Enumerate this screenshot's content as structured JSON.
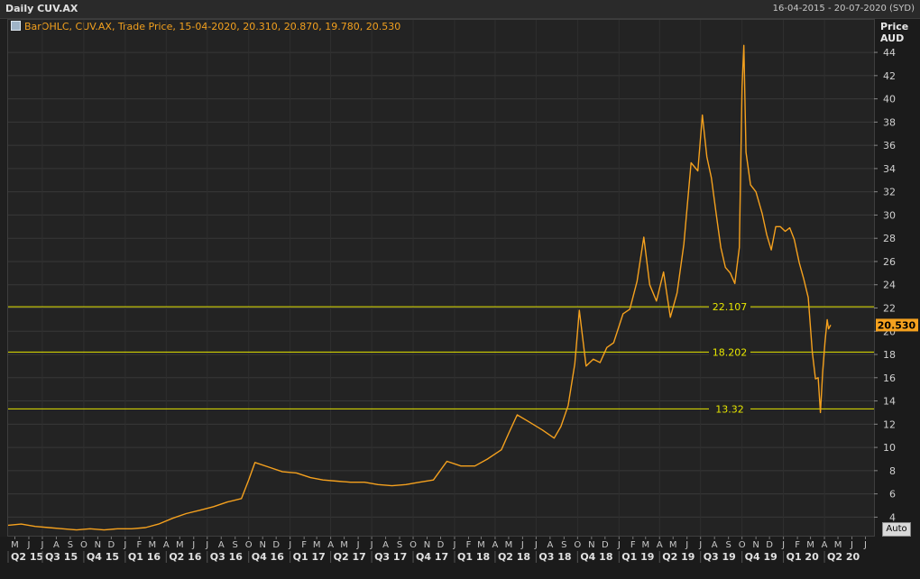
{
  "header": {
    "title": "Daily CUV.AX",
    "date_range": "16-04-2015 - 20-07-2020 (SYD)"
  },
  "legend": {
    "text": "BarOHLC, CUV.AX, Trade Price, 15-04-2020, 20.310, 20.870, 19.780, 20.530"
  },
  "auto_button": "Auto",
  "colors": {
    "price_line": "#f5a11e",
    "hline": "#e6e600",
    "last_badge": "#f5a11e",
    "background": "#232323",
    "grid": "#383838"
  },
  "chart_data": {
    "type": "line",
    "symbol": "CUV.AX",
    "ylabel": "Price",
    "yunit": "AUD",
    "ylim": [
      2.4,
      46.8
    ],
    "yticks": [
      4,
      6,
      8,
      10,
      12,
      14,
      16,
      18,
      20,
      22,
      24,
      26,
      28,
      30,
      32,
      34,
      36,
      38,
      40,
      42,
      44
    ],
    "grid": true,
    "x_range": [
      "2015-04-16",
      "2020-07-20"
    ],
    "last_value": 20.53,
    "last_value_label": "20.530",
    "horizontal_lines": [
      {
        "value": 22.107,
        "label": "22.107"
      },
      {
        "value": 18.202,
        "label": "18.202"
      },
      {
        "value": 13.32,
        "label": "13.32"
      }
    ],
    "month_labels": [
      {
        "date": "2015-05-01",
        "label": "M"
      },
      {
        "date": "2015-06-01",
        "label": "J"
      },
      {
        "date": "2015-07-01",
        "label": "J"
      },
      {
        "date": "2015-08-01",
        "label": "A"
      },
      {
        "date": "2015-09-01",
        "label": "S"
      },
      {
        "date": "2015-10-01",
        "label": "O"
      },
      {
        "date": "2015-11-01",
        "label": "N"
      },
      {
        "date": "2015-12-01",
        "label": "D"
      },
      {
        "date": "2016-01-01",
        "label": "J"
      },
      {
        "date": "2016-02-01",
        "label": "F"
      },
      {
        "date": "2016-03-01",
        "label": "M"
      },
      {
        "date": "2016-04-01",
        "label": "A"
      },
      {
        "date": "2016-05-01",
        "label": "M"
      },
      {
        "date": "2016-06-01",
        "label": "J"
      },
      {
        "date": "2016-07-01",
        "label": "J"
      },
      {
        "date": "2016-08-01",
        "label": "A"
      },
      {
        "date": "2016-09-01",
        "label": "S"
      },
      {
        "date": "2016-10-01",
        "label": "O"
      },
      {
        "date": "2016-11-01",
        "label": "N"
      },
      {
        "date": "2016-12-01",
        "label": "D"
      },
      {
        "date": "2017-01-01",
        "label": "J"
      },
      {
        "date": "2017-02-01",
        "label": "F"
      },
      {
        "date": "2017-03-01",
        "label": "M"
      },
      {
        "date": "2017-04-01",
        "label": "A"
      },
      {
        "date": "2017-05-01",
        "label": "M"
      },
      {
        "date": "2017-06-01",
        "label": "J"
      },
      {
        "date": "2017-07-01",
        "label": "J"
      },
      {
        "date": "2017-08-01",
        "label": "A"
      },
      {
        "date": "2017-09-01",
        "label": "S"
      },
      {
        "date": "2017-10-01",
        "label": "O"
      },
      {
        "date": "2017-11-01",
        "label": "N"
      },
      {
        "date": "2017-12-01",
        "label": "D"
      },
      {
        "date": "2018-01-01",
        "label": "J"
      },
      {
        "date": "2018-02-01",
        "label": "F"
      },
      {
        "date": "2018-03-01",
        "label": "M"
      },
      {
        "date": "2018-04-01",
        "label": "A"
      },
      {
        "date": "2018-05-01",
        "label": "M"
      },
      {
        "date": "2018-06-01",
        "label": "J"
      },
      {
        "date": "2018-07-01",
        "label": "J"
      },
      {
        "date": "2018-08-01",
        "label": "A"
      },
      {
        "date": "2018-09-01",
        "label": "S"
      },
      {
        "date": "2018-10-01",
        "label": "O"
      },
      {
        "date": "2018-11-01",
        "label": "N"
      },
      {
        "date": "2018-12-01",
        "label": "D"
      },
      {
        "date": "2019-01-01",
        "label": "J"
      },
      {
        "date": "2019-02-01",
        "label": "F"
      },
      {
        "date": "2019-03-01",
        "label": "M"
      },
      {
        "date": "2019-04-01",
        "label": "A"
      },
      {
        "date": "2019-05-01",
        "label": "M"
      },
      {
        "date": "2019-06-01",
        "label": "J"
      },
      {
        "date": "2019-07-01",
        "label": "J"
      },
      {
        "date": "2019-08-01",
        "label": "A"
      },
      {
        "date": "2019-09-01",
        "label": "S"
      },
      {
        "date": "2019-10-01",
        "label": "O"
      },
      {
        "date": "2019-11-01",
        "label": "N"
      },
      {
        "date": "2019-12-01",
        "label": "D"
      },
      {
        "date": "2020-01-01",
        "label": "J"
      },
      {
        "date": "2020-02-01",
        "label": "F"
      },
      {
        "date": "2020-03-01",
        "label": "M"
      },
      {
        "date": "2020-04-01",
        "label": "A"
      },
      {
        "date": "2020-05-01",
        "label": "M"
      },
      {
        "date": "2020-06-01",
        "label": "J"
      },
      {
        "date": "2020-07-01",
        "label": "J"
      }
    ],
    "quarter_labels": [
      {
        "start": "2015-04-01",
        "label": "Q2 15"
      },
      {
        "start": "2015-07-01",
        "label": "Q3 15"
      },
      {
        "start": "2015-10-01",
        "label": "Q4 15"
      },
      {
        "start": "2016-01-01",
        "label": "Q1 16"
      },
      {
        "start": "2016-04-01",
        "label": "Q2 16"
      },
      {
        "start": "2016-07-01",
        "label": "Q3 16"
      },
      {
        "start": "2016-10-01",
        "label": "Q4 16"
      },
      {
        "start": "2017-01-01",
        "label": "Q1 17"
      },
      {
        "start": "2017-04-01",
        "label": "Q2 17"
      },
      {
        "start": "2017-07-01",
        "label": "Q3 17"
      },
      {
        "start": "2017-10-01",
        "label": "Q4 17"
      },
      {
        "start": "2018-01-01",
        "label": "Q1 18"
      },
      {
        "start": "2018-04-01",
        "label": "Q2 18"
      },
      {
        "start": "2018-07-01",
        "label": "Q3 18"
      },
      {
        "start": "2018-10-01",
        "label": "Q4 18"
      },
      {
        "start": "2019-01-01",
        "label": "Q1 19"
      },
      {
        "start": "2019-04-01",
        "label": "Q2 19"
      },
      {
        "start": "2019-07-01",
        "label": "Q3 19"
      },
      {
        "start": "2019-10-01",
        "label": "Q4 19"
      },
      {
        "start": "2020-01-01",
        "label": "Q1 20"
      },
      {
        "start": "2020-04-01",
        "label": "Q2 20"
      }
    ],
    "series": [
      {
        "x": [
          "2015-04-16",
          "2015-05-15",
          "2015-06-15",
          "2015-07-15",
          "2015-08-15",
          "2015-09-15",
          "2015-10-15",
          "2015-11-15",
          "2015-12-15",
          "2016-01-15",
          "2016-02-15",
          "2016-03-15",
          "2016-04-15",
          "2016-05-15",
          "2016-06-15",
          "2016-07-15",
          "2016-08-15",
          "2016-09-15",
          "2016-10-01",
          "2016-10-15",
          "2016-11-15",
          "2016-12-15",
          "2017-01-15",
          "2017-02-15",
          "2017-03-15",
          "2017-04-15",
          "2017-05-15",
          "2017-06-15",
          "2017-07-15",
          "2017-08-15",
          "2017-09-15",
          "2017-10-15",
          "2017-11-15",
          "2017-12-15",
          "2018-01-15",
          "2018-02-15",
          "2018-03-15",
          "2018-04-15",
          "2018-05-01",
          "2018-05-20",
          "2018-06-15",
          "2018-07-15",
          "2018-08-10",
          "2018-08-25",
          "2018-09-10",
          "2018-09-25",
          "2018-10-05",
          "2018-10-20",
          "2018-11-05",
          "2018-11-20",
          "2018-12-05",
          "2018-12-20",
          "2019-01-10",
          "2019-01-25",
          "2019-02-10",
          "2019-02-25",
          "2019-03-10",
          "2019-03-25",
          "2019-04-10",
          "2019-04-25",
          "2019-05-10",
          "2019-05-25",
          "2019-06-10",
          "2019-06-25",
          "2019-07-05",
          "2019-07-15",
          "2019-07-25",
          "2019-08-05",
          "2019-08-15",
          "2019-08-25",
          "2019-09-05",
          "2019-09-15",
          "2019-09-25",
          "2019-10-01",
          "2019-10-05",
          "2019-10-10",
          "2019-10-20",
          "2019-11-01",
          "2019-11-15",
          "2019-11-25",
          "2019-12-05",
          "2019-12-15",
          "2019-12-25",
          "2020-01-05",
          "2020-01-15",
          "2020-01-25",
          "2020-02-05",
          "2020-02-15",
          "2020-02-25",
          "2020-03-05",
          "2020-03-12",
          "2020-03-18",
          "2020-03-23",
          "2020-03-28",
          "2020-04-02",
          "2020-04-07",
          "2020-04-10",
          "2020-04-15"
        ],
        "values": [
          3.3,
          3.4,
          3.2,
          3.1,
          3.0,
          2.9,
          3.0,
          2.9,
          3.0,
          3.0,
          3.1,
          3.4,
          3.9,
          4.3,
          4.6,
          4.9,
          5.3,
          5.6,
          7.2,
          8.7,
          8.3,
          7.9,
          7.8,
          7.4,
          7.2,
          7.1,
          7.0,
          7.0,
          6.8,
          6.7,
          6.8,
          7.0,
          7.2,
          8.8,
          8.4,
          8.4,
          9.0,
          9.8,
          11.2,
          12.8,
          12.2,
          11.5,
          10.8,
          11.8,
          13.6,
          17.2,
          21.8,
          17.0,
          17.6,
          17.3,
          18.6,
          19.0,
          21.5,
          21.9,
          24.3,
          28.1,
          24.0,
          22.6,
          25.1,
          21.2,
          23.3,
          27.5,
          34.5,
          33.8,
          38.6,
          35.0,
          33.2,
          30.0,
          27.2,
          25.5,
          25.0,
          24.1,
          27.2,
          41.0,
          44.6,
          35.4,
          32.6,
          32.0,
          30.1,
          28.3,
          27.0,
          29.0,
          29.0,
          28.6,
          28.9,
          27.9,
          25.9,
          24.5,
          22.9,
          18.2,
          15.9,
          16.0,
          13.0,
          16.5,
          19.0,
          21.0,
          20.2,
          20.53
        ]
      }
    ]
  }
}
